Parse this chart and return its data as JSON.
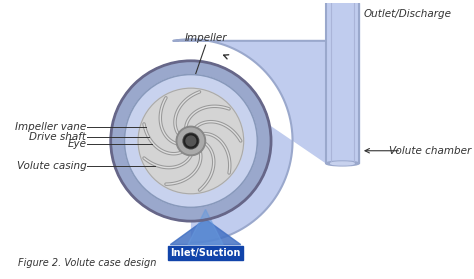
{
  "bg_color": "#ffffff",
  "volute_outer_color": "#9aa8cc",
  "volute_inner_color": "#c8d2ee",
  "chamber_color": "#c0ccee",
  "chamber_outer_color": "#8898cc",
  "impeller_outer_color": "#c8c8c8",
  "impeller_mid_color": "#d8d8d8",
  "impeller_light_color": "#e8e8e8",
  "hub_color": "#888888",
  "shaft_color": "#222222",
  "arrow_color": "#4472c4",
  "inlet_label_bg": "#1144aa",
  "inlet_label_color": "#ffffff",
  "line_color": "#333333",
  "text_color": "#333333",
  "vane_color": "#aaaaaa",
  "vane_light": "#e0e0e0",
  "labels_left": [
    "Impeller vane",
    "Drive shaft",
    "Eye",
    "Volute casing"
  ],
  "label_right": "Volute chamber",
  "label_top": "Impeller",
  "label_outlet": "Outlet/Discharge",
  "label_inlet": "Inlet/Suction",
  "caption": "Figure 2. Volute case design",
  "label_fontsize": 7.5,
  "caption_fontsize": 7
}
